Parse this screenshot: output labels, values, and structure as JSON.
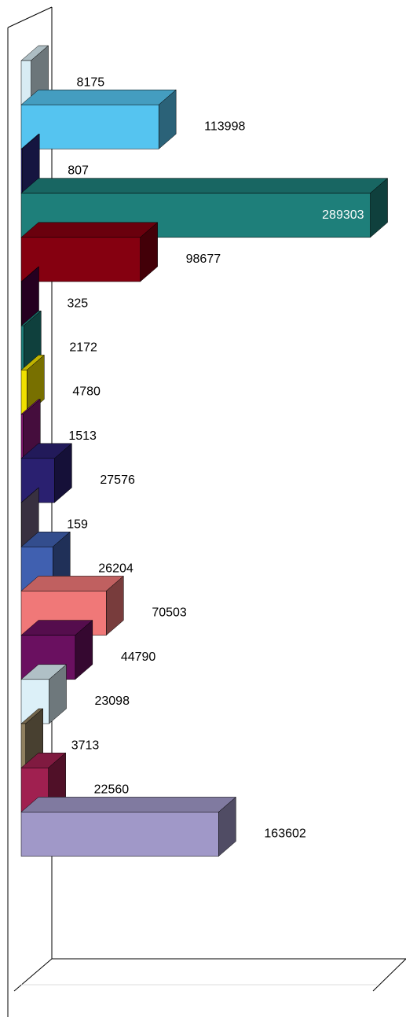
{
  "chart_data": {
    "type": "bar3d",
    "orientation": "horizontal",
    "values": [
      8175,
      113998,
      807,
      289303,
      98677,
      325,
      2172,
      4780,
      1513,
      27576,
      159,
      26204,
      70503,
      44790,
      23098,
      3713,
      22560,
      163602
    ],
    "colors": [
      "#d8ecf4",
      "#55c4f0",
      "#2a2a80",
      "#1e7f7a",
      "#850010",
      "#4a0040",
      "#1e7f7a",
      "#f0e000",
      "#8a1a7a",
      "#2a2070",
      "#706080",
      "#4060b0",
      "#f07878",
      "#6a1060",
      "#dcf0f8",
      "#908060",
      "#a02050",
      "#a098c8"
    ],
    "xlim": [
      0,
      300000
    ]
  }
}
